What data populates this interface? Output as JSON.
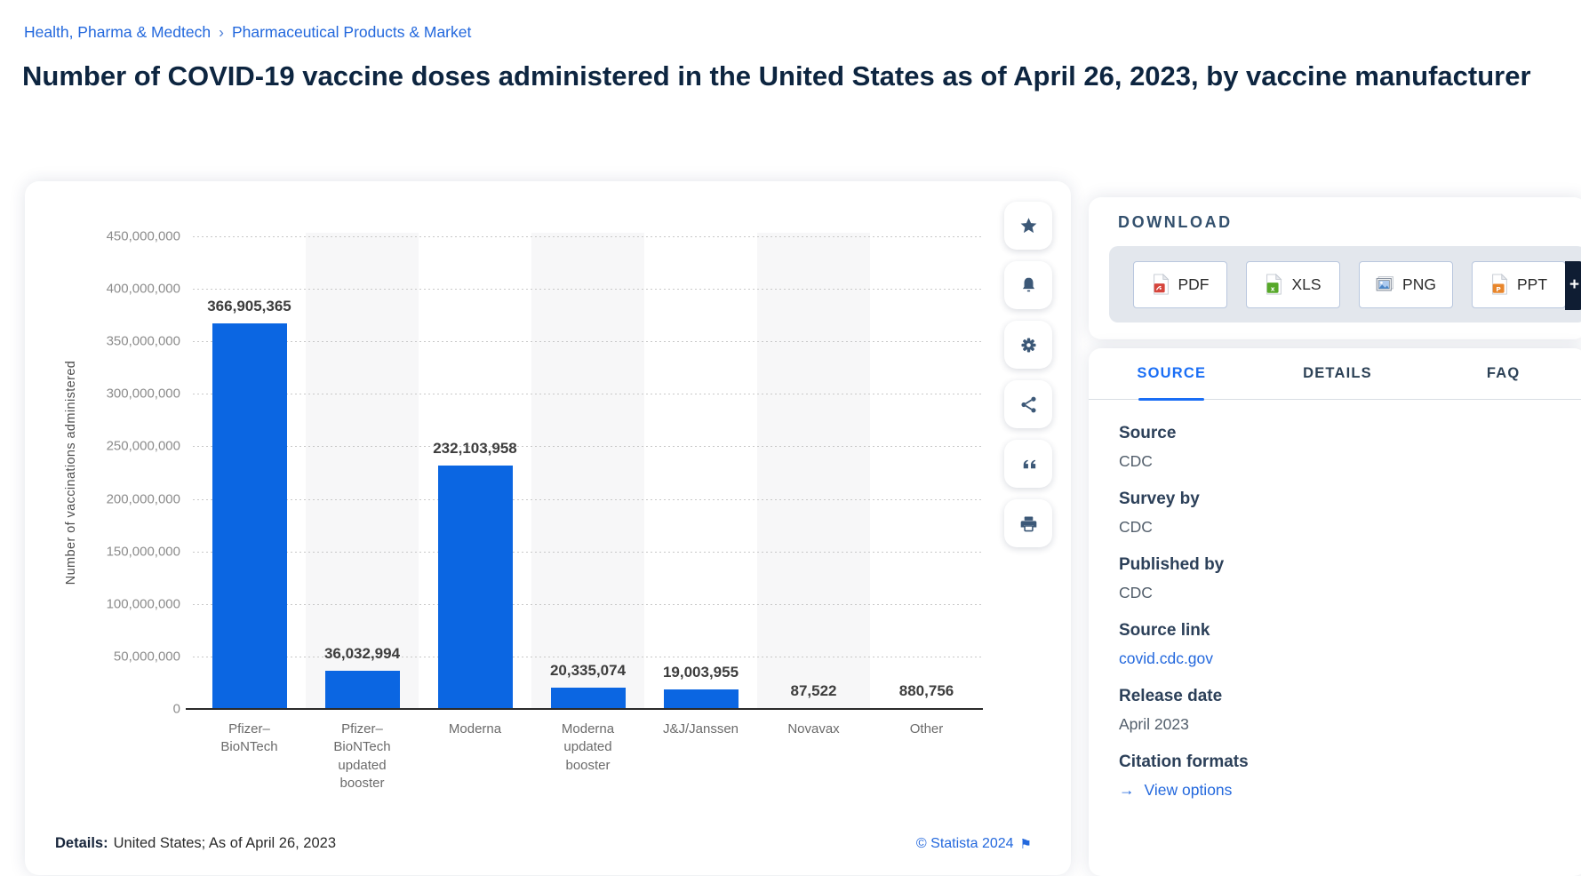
{
  "breadcrumb": {
    "separator": "›",
    "items": [
      {
        "label": "Health, Pharma & Medtech"
      },
      {
        "label": "Pharmaceutical Products & Market"
      }
    ]
  },
  "title": "Number of COVID-19 vaccine doses administered in the United States as of April 26, 2023, by vaccine manufacturer",
  "chart_data": {
    "type": "bar",
    "title": "Number of COVID-19 vaccine doses administered in the United States as of April 26, 2023, by vaccine manufacturer",
    "ylabel": "Number of vaccinations administered",
    "xlabel": "",
    "categories": [
      "Pfizer–\nBioNTech",
      "Pfizer–\nBioNTech\nupdated\nbooster",
      "Moderna",
      "Moderna\nupdated\nbooster",
      "J&J/Janssen",
      "Novavax",
      "Other"
    ],
    "values": [
      366905365,
      36032994,
      232103958,
      20335074,
      19003955,
      87522,
      880756
    ],
    "value_labels": [
      "366,905,365",
      "36,032,994",
      "232,103,958",
      "20,335,074",
      "19,003,955",
      "87,522",
      "880,756"
    ],
    "ylim": [
      0,
      450000000
    ],
    "ytick_labels": [
      "0",
      "50,000,000",
      "100,000,000",
      "150,000,000",
      "200,000,000",
      "250,000,000",
      "300,000,000",
      "350,000,000",
      "400,000,000",
      "450,000,000"
    ],
    "grid": "horizontal-dotted",
    "legend": "none",
    "bar_color": "#0b66e2",
    "stripe_color": "#f7f7f8"
  },
  "action_bar": {
    "buttons": [
      {
        "name": "favorite",
        "icon": "star-icon"
      },
      {
        "name": "alert",
        "icon": "bell-icon"
      },
      {
        "name": "settings",
        "icon": "gear-icon"
      },
      {
        "name": "share",
        "icon": "share-icon"
      },
      {
        "name": "cite",
        "icon": "quote-icon"
      },
      {
        "name": "print",
        "icon": "printer-icon"
      }
    ]
  },
  "chart_footer": {
    "details_label": "Details:",
    "details_text": "United States; As of April 26, 2023",
    "copyright": "© Statista 2024",
    "flag_icon": "⚑"
  },
  "download": {
    "header": "DOWNLOAD",
    "buttons": [
      {
        "label": "PDF",
        "icon": "pdf-file-icon"
      },
      {
        "label": "XLS",
        "icon": "xls-file-icon"
      },
      {
        "label": "PNG",
        "icon": "png-file-icon"
      },
      {
        "label": "PPT",
        "icon": "ppt-file-icon"
      }
    ],
    "more_label": "+"
  },
  "source_panel": {
    "tabs": [
      {
        "label": "SOURCE",
        "active": true
      },
      {
        "label": "DETAILS",
        "active": false
      },
      {
        "label": "FAQ",
        "active": false
      }
    ],
    "fields": [
      {
        "label": "Source",
        "value": "CDC",
        "link": false
      },
      {
        "label": "Survey by",
        "value": "CDC",
        "link": false
      },
      {
        "label": "Published by",
        "value": "CDC",
        "link": false
      },
      {
        "label": "Source link",
        "value": "covid.cdc.gov",
        "link": true
      },
      {
        "label": "Release date",
        "value": "April 2023",
        "link": false
      },
      {
        "label": "Citation formats",
        "value": "View options",
        "link": true,
        "arrow": "→"
      }
    ]
  },
  "colors": {
    "accent_blue": "#2368dd",
    "active_tab_blue": "#1a6ef5",
    "bar_blue": "#0b66e2",
    "title_navy": "#0d2540",
    "heading_navy": "#2c4059",
    "icon_slate": "#3c5877",
    "panel_gray": "#e3e7ed"
  }
}
